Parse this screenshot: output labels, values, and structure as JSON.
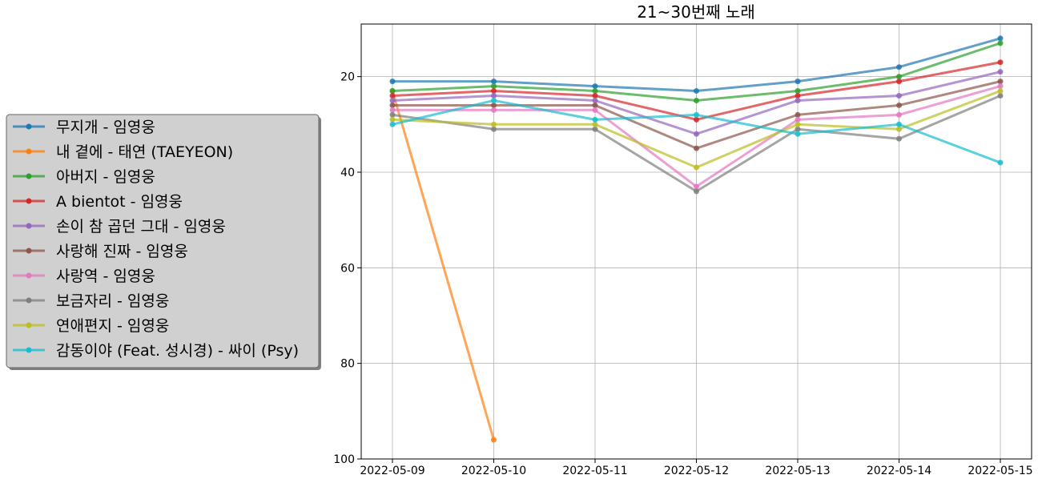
{
  "chart_data": {
    "type": "line",
    "title": "21~30번째 노래",
    "xlabel": "",
    "ylabel": "",
    "x": [
      "2022-05-09",
      "2022-05-10",
      "2022-05-11",
      "2022-05-12",
      "2022-05-13",
      "2022-05-14",
      "2022-05-15"
    ],
    "y_inverted": true,
    "ylim": [
      9,
      100
    ],
    "yticks": [
      20,
      40,
      60,
      80,
      100
    ],
    "grid": true,
    "legend_position": "left",
    "series": [
      {
        "name": "무지개 - 임영웅",
        "color": "#1f77b4",
        "values": [
          21,
          21,
          22,
          23,
          21,
          18,
          12
        ]
      },
      {
        "name": "내 곁에 - 태연 (TAEYEON)",
        "color": "#ff7f0e",
        "values": [
          23,
          96,
          null,
          null,
          null,
          null,
          null
        ]
      },
      {
        "name": "아버지 - 임영웅",
        "color": "#2ca02c",
        "values": [
          23,
          22,
          23,
          25,
          23,
          20,
          13
        ]
      },
      {
        "name": "A bientot - 임영웅",
        "color": "#d62728",
        "values": [
          24,
          23,
          24,
          29,
          24,
          21,
          17
        ]
      },
      {
        "name": "손이 참 곱던 그대 - 임영웅",
        "color": "#9467bd",
        "values": [
          25,
          24,
          25,
          32,
          25,
          24,
          19
        ]
      },
      {
        "name": "사랑해 진짜 - 임영웅",
        "color": "#8c564b",
        "values": [
          26,
          26,
          26,
          35,
          28,
          26,
          21
        ]
      },
      {
        "name": "사랑역 - 임영웅",
        "color": "#e377c2",
        "values": [
          27,
          27,
          27,
          43,
          29,
          28,
          22
        ]
      },
      {
        "name": "보금자리 - 임영웅",
        "color": "#7f7f7f",
        "values": [
          28,
          31,
          31,
          44,
          31,
          33,
          24
        ]
      },
      {
        "name": "연애편지 - 임영웅",
        "color": "#bcbd22",
        "values": [
          29,
          30,
          30,
          39,
          30,
          31,
          23
        ]
      },
      {
        "name": "감동이야 (Feat. 성시경) - 싸이 (Psy)",
        "color": "#17becf",
        "values": [
          30,
          25,
          29,
          28,
          32,
          30,
          38
        ]
      }
    ]
  }
}
